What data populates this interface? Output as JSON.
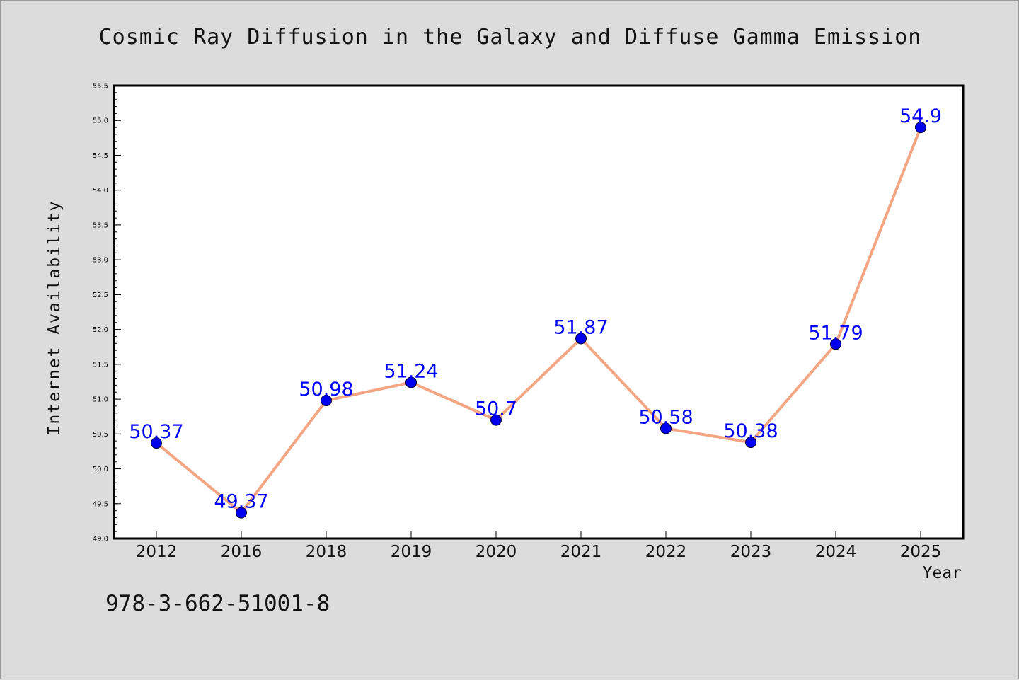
{
  "chart_data": {
    "type": "line",
    "title": "Cosmic Ray Diffusion in the Galaxy and Diffuse Gamma Emission",
    "xlabel": "Year",
    "ylabel": "Internet Availability",
    "categories": [
      "2012",
      "2016",
      "2018",
      "2019",
      "2020",
      "2021",
      "2022",
      "2023",
      "2024",
      "2025"
    ],
    "series": [
      {
        "values": [
          50.37,
          49.37,
          50.98,
          51.24,
          50.7,
          51.87,
          50.58,
          50.38,
          51.79,
          54.9
        ],
        "data_labels": [
          "50.37",
          "49.37",
          "50.98",
          "51.24",
          "50.7",
          "51.87",
          "50.58",
          "50.38",
          "51.79",
          "54.9"
        ]
      }
    ],
    "ylim": [
      49.0,
      55.5
    ],
    "yticks": [
      "49.0",
      "49.5",
      "50.0",
      "50.5",
      "51.0",
      "51.5",
      "52.0",
      "52.5",
      "53.0",
      "53.5",
      "54.0",
      "54.5",
      "55.0",
      "55.5"
    ],
    "grid": false,
    "legend": "none",
    "colors": {
      "line": "#f4a582",
      "marker": "#0000ee",
      "data_label": "#0000ff",
      "background": "#dcdcdc",
      "plot_area": "#ffffff"
    }
  },
  "annotation": "978-3-662-51001-8"
}
